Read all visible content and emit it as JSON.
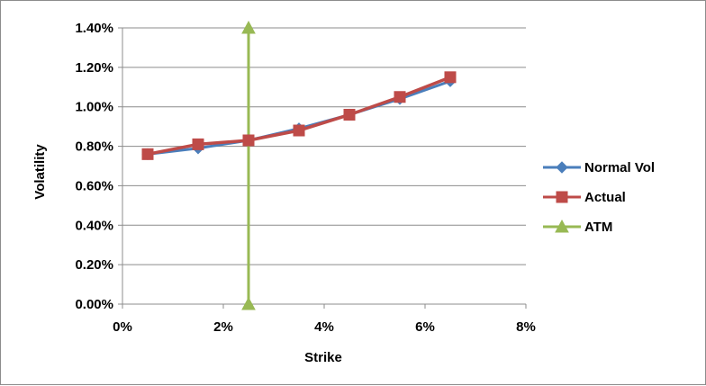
{
  "chart_data": {
    "type": "scatter",
    "title": "",
    "xlabel": "Strike",
    "ylabel": "Volatility",
    "xlim": [
      0,
      0.08
    ],
    "ylim": [
      0,
      0.014
    ],
    "grid": "horizontal",
    "legend_position": "right",
    "x_ticks": [
      "0%",
      "2%",
      "4%",
      "6%",
      "8%"
    ],
    "y_ticks": [
      "0.00%",
      "0.20%",
      "0.40%",
      "0.60%",
      "0.80%",
      "1.00%",
      "1.20%",
      "1.40%"
    ],
    "series": [
      {
        "name": "Normal Vol",
        "color": "#4a7ebb",
        "marker": "diamond",
        "x": [
          0.005,
          0.015,
          0.025,
          0.035,
          0.045,
          0.055,
          0.065
        ],
        "y": [
          0.0076,
          0.0079,
          0.0083,
          0.0089,
          0.0096,
          0.0104,
          0.0113
        ]
      },
      {
        "name": "Actual",
        "color": "#be4b48",
        "marker": "square",
        "x": [
          0.005,
          0.015,
          0.025,
          0.035,
          0.045,
          0.055,
          0.065
        ],
        "y": [
          0.0076,
          0.0081,
          0.0083,
          0.0088,
          0.0096,
          0.0105,
          0.0115
        ]
      },
      {
        "name": "ATM",
        "color": "#98b954",
        "marker": "triangle",
        "x": [
          0.025,
          0.025
        ],
        "y": [
          0.0,
          0.014
        ]
      }
    ]
  }
}
